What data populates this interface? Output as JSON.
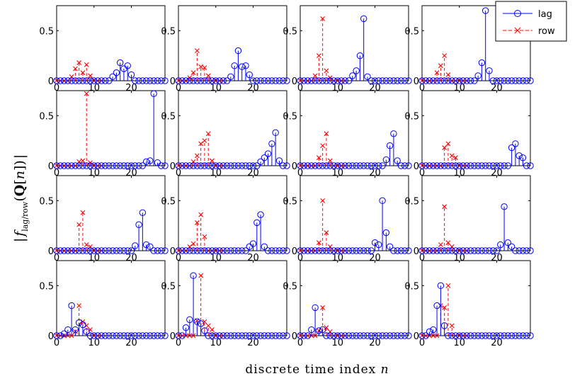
{
  "figure": {
    "xlabel": "discrete time index n",
    "ylabel": "| f_lag/row(Q[n]) |",
    "legend": {
      "items": [
        "lag",
        "row"
      ],
      "position": "top-right",
      "colors": [
        "#0000ff",
        "#ff0000"
      ]
    }
  },
  "chart_data": {
    "type": "stem",
    "layout": "4x4 grid of subplots",
    "xlim": [
      0,
      29
    ],
    "ylim": [
      0,
      0.75
    ],
    "xticks": [
      "0",
      "10",
      "20"
    ],
    "yticks": [
      "0",
      "0.5"
    ],
    "series_names": [
      "lag",
      "row"
    ],
    "panels": [
      {
        "lag": {
          "16": 0.08,
          "17": 0.18,
          "18": 0.12,
          "19": 0.15,
          "20": 0.06,
          "15": 0.04
        },
        "row": {
          "5": 0.12,
          "6": 0.18,
          "7": 0.08,
          "8": 0.16,
          "4": 0.04,
          "9": 0.05
        }
      },
      {
        "lag": {
          "15": 0.15,
          "16": 0.3,
          "17": 0.14,
          "18": 0.15,
          "19": 0.06,
          "14": 0.04
        },
        "row": {
          "4": 0.08,
          "5": 0.3,
          "6": 0.14,
          "7": 0.13,
          "8": 0.05,
          "3": 0.03
        }
      },
      {
        "lag": {
          "15": 0.1,
          "16": 0.25,
          "17": 0.62,
          "14": 0.05,
          "18": 0.04
        },
        "row": {
          "5": 0.25,
          "6": 0.62,
          "7": 0.1,
          "4": 0.05,
          "8": 0.03
        }
      },
      {
        "lag": {
          "16": 0.18,
          "17": 0.7,
          "18": 0.1,
          "15": 0.05
        },
        "row": {
          "5": 0.15,
          "6": 0.25,
          "4": 0.08,
          "7": 0.06
        }
      },
      {
        "lag": {
          "25": 0.05,
          "26": 0.72,
          "24": 0.04,
          "27": 0.03
        },
        "row": {
          "7": 0.05,
          "8": 0.72,
          "6": 0.04,
          "9": 0.03
        }
      },
      {
        "lag": {
          "23": 0.08,
          "24": 0.12,
          "25": 0.22,
          "26": 0.33,
          "27": 0.05,
          "22": 0.04
        },
        "row": {
          "5": 0.1,
          "6": 0.22,
          "7": 0.25,
          "8": 0.32,
          "9": 0.05,
          "4": 0.04
        }
      },
      {
        "lag": {
          "23": 0.06,
          "24": 0.2,
          "25": 0.32,
          "26": 0.05
        },
        "row": {
          "5": 0.08,
          "6": 0.2,
          "7": 0.32,
          "8": 0.05
        }
      },
      {
        "lag": {
          "24": 0.18,
          "25": 0.22,
          "26": 0.1,
          "27": 0.08
        },
        "row": {
          "6": 0.18,
          "7": 0.22,
          "8": 0.1,
          "9": 0.08
        }
      },
      {
        "lag": {
          "21": 0.05,
          "22": 0.26,
          "23": 0.38,
          "24": 0.06,
          "25": 0.04
        },
        "row": {
          "6": 0.26,
          "7": 0.38,
          "8": 0.06,
          "9": 0.04
        }
      },
      {
        "lag": {
          "20": 0.07,
          "21": 0.28,
          "22": 0.36,
          "23": 0.04,
          "19": 0.04
        },
        "row": {
          "4": 0.07,
          "5": 0.28,
          "6": 0.36,
          "7": 0.14,
          "3": 0.04
        }
      },
      {
        "lag": {
          "20": 0.08,
          "21": 0.06,
          "22": 0.5,
          "23": 0.18,
          "24": 0.04
        },
        "row": {
          "5": 0.08,
          "6": 0.5,
          "7": 0.18,
          "8": 0.04
        }
      },
      {
        "lag": {
          "21": 0.06,
          "22": 0.44,
          "23": 0.08,
          "24": 0.04
        },
        "row": {
          "5": 0.06,
          "6": 0.44,
          "7": 0.08,
          "8": 0.04
        }
      },
      {
        "lag": {
          "3": 0.06,
          "4": 0.3,
          "5": 0.06,
          "6": 0.13,
          "7": 0.11,
          "8": 0.04,
          "2": 0.02
        },
        "row": {
          "6": 0.3,
          "7": 0.14,
          "8": 0.1,
          "5": 0.04,
          "9": 0.06
        }
      },
      {
        "lag": {
          "2": 0.08,
          "3": 0.16,
          "4": 0.6,
          "5": 0.14,
          "6": 0.12,
          "7": 0.05
        },
        "row": {
          "5": 0.15,
          "6": 0.6,
          "7": 0.14,
          "8": 0.1,
          "9": 0.06
        }
      },
      {
        "lag": {
          "3": 0.06,
          "4": 0.28,
          "5": 0.05,
          "6": 0.06
        },
        "row": {
          "6": 0.28,
          "7": 0.08,
          "5": 0.05,
          "8": 0.04
        }
      },
      {
        "lag": {
          "3": 0.06,
          "4": 0.3,
          "5": 0.5,
          "6": 0.1,
          "2": 0.04
        },
        "row": {
          "5": 0.3,
          "6": 0.28,
          "7": 0.5,
          "8": 0.1
        }
      }
    ]
  }
}
